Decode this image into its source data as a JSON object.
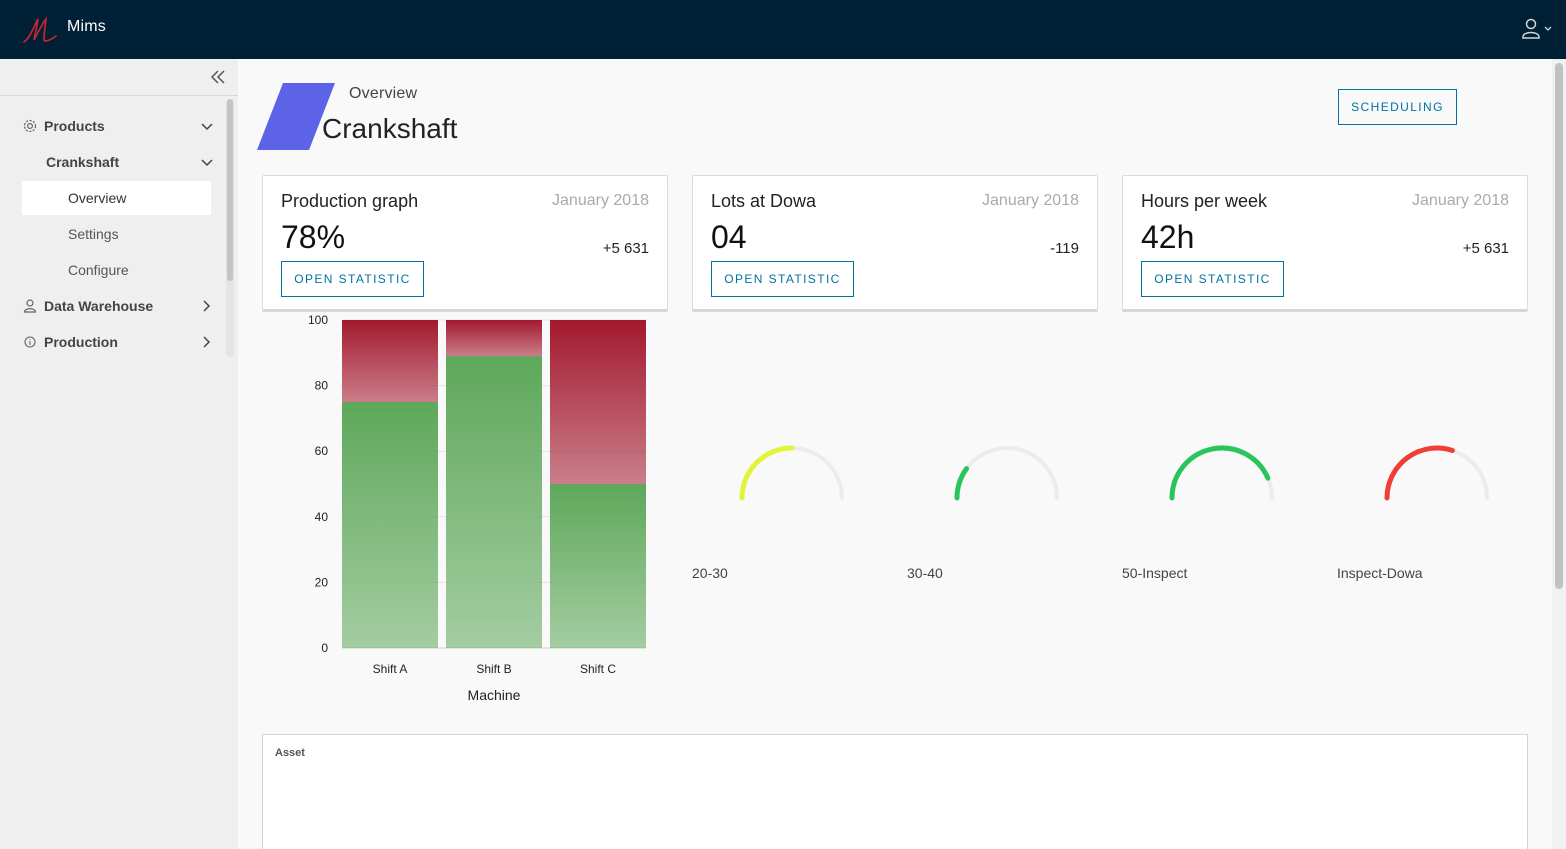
{
  "header": {
    "app_title": "Mims",
    "logo_icon": "mims-logo-icon",
    "user_icon": "user-icon",
    "brand_color": "#002035"
  },
  "sidebar": {
    "collapse_icon": "double-chevron-left-icon",
    "items": [
      {
        "label": "Products",
        "icon": "gear-icon",
        "expanded": true
      },
      {
        "label": "Crankshaft",
        "expanded": true
      },
      {
        "label": "Overview",
        "active": true
      },
      {
        "label": "Settings"
      },
      {
        "label": "Configure"
      },
      {
        "label": "Data Warehouse",
        "icon": "user-icon",
        "expanded": false
      },
      {
        "label": "Production",
        "icon": "info-icon",
        "expanded": false
      }
    ]
  },
  "page": {
    "breadcrumb": "Overview",
    "title": "Crankshaft",
    "scheduling_label": "SCHEDULING",
    "accent_color": "#5c63e6"
  },
  "cards": [
    {
      "title": "Production graph",
      "date": "January 2018",
      "value": "78%",
      "delta": "+5 631",
      "button": "OPEN STATISTIC"
    },
    {
      "title": "Lots at Dowa",
      "date": "January 2018",
      "value": "04",
      "delta": "-119",
      "button": "OPEN STATISTIC"
    },
    {
      "title": "Hours per week",
      "date": "January 2018",
      "value": "42h",
      "delta": "+5 631",
      "button": "OPEN STATISTIC"
    }
  ],
  "chart_data": {
    "type": "bar",
    "stacked": true,
    "categories": [
      "Shift A",
      "Shift B",
      "Shift C"
    ],
    "series": [
      {
        "values": [
          75,
          89,
          50
        ],
        "color": "#5ea85a"
      },
      {
        "values": [
          25,
          11,
          50
        ],
        "color": "#a3192e"
      }
    ],
    "xlabel": "Machine",
    "ylabel": "",
    "ylim": [
      0,
      100
    ],
    "yticks": [
      0,
      20,
      40,
      60,
      80,
      100
    ],
    "grid": true
  },
  "gauges": [
    {
      "label": "20-30",
      "value": 0.5,
      "color": "#e4f23a"
    },
    {
      "label": "30-40",
      "value": 0.2,
      "color": "#2bc45c"
    },
    {
      "label": "50-Inspect",
      "value": 0.87,
      "color": "#2bc45c"
    },
    {
      "label": "Inspect-Dowa",
      "value": 0.6,
      "color": "#ef3e36"
    }
  ],
  "asset": {
    "label": "Asset"
  }
}
